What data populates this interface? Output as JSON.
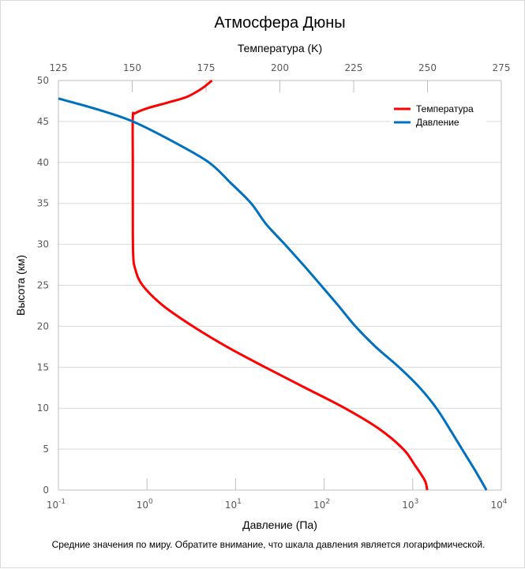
{
  "chart_data": {
    "type": "line",
    "title": "Атмосфера Дюны",
    "caption": "Средние значения по миру. Обратите внимание, что шкала давления является логарифмической.",
    "y_axis": {
      "label": "Высота (км)",
      "range": [
        0,
        50
      ],
      "ticks": [
        "0",
        "5",
        "10",
        "15",
        "20",
        "25",
        "30",
        "35",
        "40",
        "45",
        "50"
      ],
      "tick_values": [
        0,
        5,
        10,
        15,
        20,
        25,
        30,
        35,
        40,
        45,
        50
      ],
      "grid": true
    },
    "x_axis_top": {
      "label": "Температура (K)",
      "range": [
        125,
        275
      ],
      "ticks": [
        "125",
        "150",
        "175",
        "200",
        "225",
        "250",
        "275"
      ],
      "tick_values": [
        125,
        150,
        175,
        200,
        225,
        250,
        275
      ]
    },
    "x_axis_bottom": {
      "label": "Давление (Па)",
      "scale": "log",
      "range": [
        0.1,
        10000
      ],
      "ticks": [
        {
          "base": "10",
          "exp": "-1"
        },
        {
          "base": "10",
          "exp": "0"
        },
        {
          "base": "10",
          "exp": "1"
        },
        {
          "base": "10",
          "exp": "2"
        },
        {
          "base": "10",
          "exp": "3"
        },
        {
          "base": "10",
          "exp": "4"
        }
      ],
      "tick_exponents": [
        -1,
        0,
        1,
        2,
        3,
        4
      ]
    },
    "legend": {
      "position": "top-right",
      "entries": [
        {
          "label": "Температура",
          "color": "#ff0000"
        },
        {
          "label": "Давление",
          "color": "#0070c0"
        }
      ]
    },
    "series": [
      {
        "name": "Температура",
        "axis": "top",
        "color": "#ff0000",
        "points": [
          {
            "alt": 0,
            "value": 249.9
          },
          {
            "alt": 1,
            "value": 249.3
          },
          {
            "alt": 2,
            "value": 247.7
          },
          {
            "alt": 3,
            "value": 245.8
          },
          {
            "alt": 5,
            "value": 241.8
          },
          {
            "alt": 7.5,
            "value": 233.5
          },
          {
            "alt": 10,
            "value": 222.0
          },
          {
            "alt": 12.5,
            "value": 208.5
          },
          {
            "alt": 15,
            "value": 195.0
          },
          {
            "alt": 17.5,
            "value": 182.0
          },
          {
            "alt": 20,
            "value": 170.5
          },
          {
            "alt": 22.5,
            "value": 160.5
          },
          {
            "alt": 25,
            "value": 153.5
          },
          {
            "alt": 27,
            "value": 151.0
          },
          {
            "alt": 29,
            "value": 150.3
          },
          {
            "alt": 35,
            "value": 150.2
          },
          {
            "alt": 40,
            "value": 150.2
          },
          {
            "alt": 45.5,
            "value": 150.2
          },
          {
            "alt": 46.0,
            "value": 151.0
          },
          {
            "alt": 46.6,
            "value": 155.0
          },
          {
            "alt": 47.3,
            "value": 162.0
          },
          {
            "alt": 48.0,
            "value": 168.5
          },
          {
            "alt": 49.0,
            "value": 173.5
          },
          {
            "alt": 50,
            "value": 177.0
          }
        ]
      },
      {
        "name": "Давление",
        "axis": "bottom",
        "color": "#0070c0",
        "points": [
          {
            "alt": 0,
            "value": 6800
          },
          {
            "alt": 2.5,
            "value": 5000
          },
          {
            "alt": 5,
            "value": 3600
          },
          {
            "alt": 7.5,
            "value": 2600
          },
          {
            "alt": 10,
            "value": 1850
          },
          {
            "alt": 12.5,
            "value": 1200
          },
          {
            "alt": 15,
            "value": 700
          },
          {
            "alt": 17.5,
            "value": 380
          },
          {
            "alt": 20,
            "value": 225
          },
          {
            "alt": 22.5,
            "value": 145
          },
          {
            "alt": 25,
            "value": 92
          },
          {
            "alt": 27.5,
            "value": 58
          },
          {
            "alt": 30,
            "value": 36
          },
          {
            "alt": 32.5,
            "value": 22
          },
          {
            "alt": 35,
            "value": 15
          },
          {
            "alt": 37.5,
            "value": 8.8
          },
          {
            "alt": 40,
            "value": 5.0
          },
          {
            "alt": 42.5,
            "value": 2.0
          },
          {
            "alt": 45,
            "value": 0.69
          },
          {
            "alt": 46.5,
            "value": 0.27
          },
          {
            "alt": 47.8,
            "value": 0.1
          }
        ]
      }
    ]
  }
}
